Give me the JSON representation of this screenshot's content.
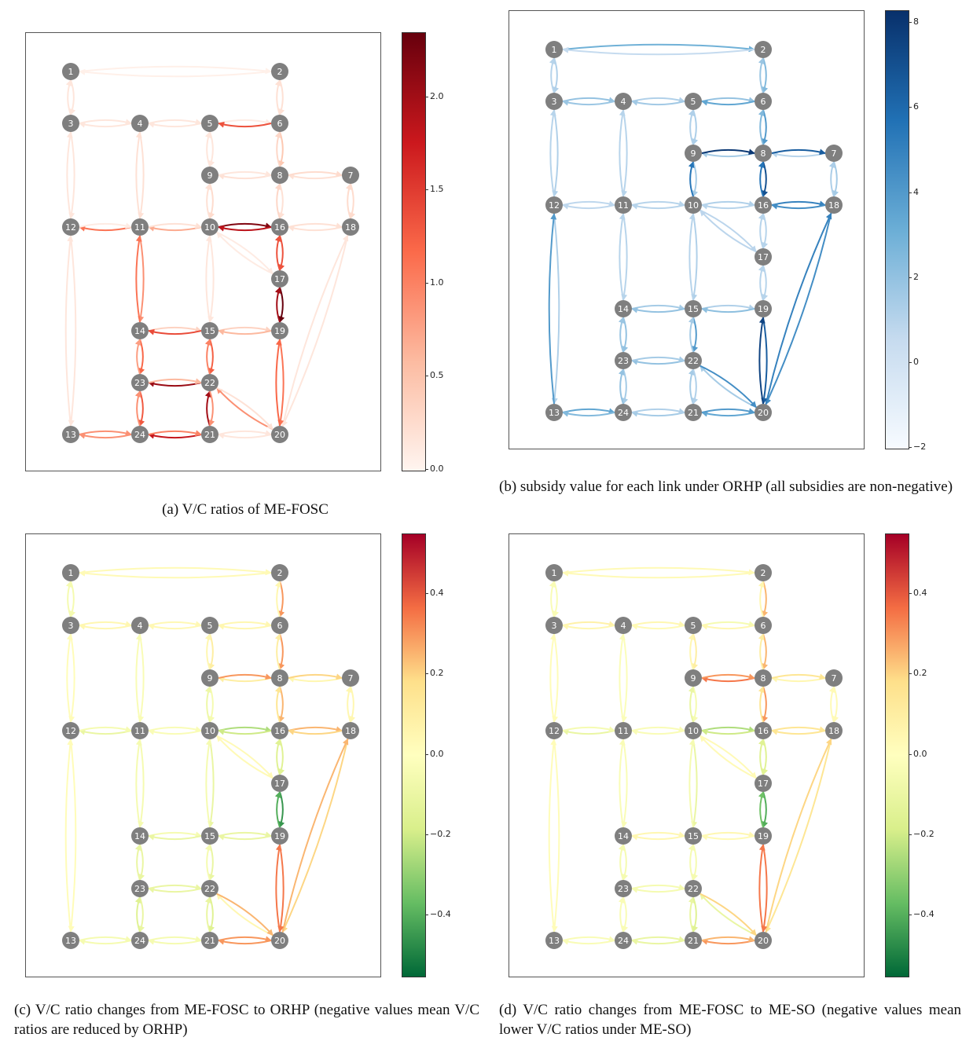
{
  "panels": [
    {
      "id": "a",
      "caption": "(a) V/C ratios of ME-FOSC",
      "colorbar": {
        "colors": [
          "#fff5f0",
          "#fcbba1",
          "#fb6a4a",
          "#cb181d",
          "#67000d"
        ],
        "ticks": [
          "0.0",
          "0.5",
          "1.0",
          "1.5",
          "2.0"
        ],
        "tick_values": [
          0.0,
          0.5,
          1.0,
          1.5,
          2.0
        ],
        "range": [
          0.0,
          2.35
        ]
      }
    },
    {
      "id": "b",
      "caption": "(b) subsidy value for each link under ORHP (all subsidies are non-negative)",
      "colorbar": {
        "colors": [
          "#f7fbff",
          "#c6dbef",
          "#6baed6",
          "#2171b5",
          "#08306b"
        ],
        "ticks": [
          "−2",
          "0",
          "2",
          "4",
          "6",
          "8"
        ],
        "tick_values": [
          -2,
          0,
          2,
          4,
          6,
          8
        ],
        "range": [
          -2.0,
          8.3
        ]
      }
    },
    {
      "id": "c",
      "caption": "(c) V/C ratio changes from ME-FOSC to ORHP (negative values mean V/C ratios are reduced by ORHP)",
      "colorbar": {
        "colors": [
          "#006837",
          "#66bd63",
          "#d9ef8b",
          "#ffffbf",
          "#fee08b",
          "#f46d43",
          "#a50026"
        ],
        "ticks": [
          "−0.4",
          "−0.2",
          "0.0",
          "0.2",
          "0.4"
        ],
        "tick_values": [
          -0.4,
          -0.2,
          0.0,
          0.2,
          0.4
        ],
        "range": [
          -0.55,
          0.55
        ]
      }
    },
    {
      "id": "d",
      "caption": "(d) V/C ratio changes from ME-FOSC to ME-SO (negative values mean lower V/C ratios under ME-SO)",
      "colorbar": {
        "colors": [
          "#006837",
          "#66bd63",
          "#d9ef8b",
          "#ffffbf",
          "#fee08b",
          "#f46d43",
          "#a50026"
        ],
        "ticks": [
          "−0.4",
          "−0.2",
          "0.0",
          "0.2",
          "0.4"
        ],
        "tick_values": [
          -0.4,
          -0.2,
          0.0,
          0.2,
          0.4
        ],
        "range": [
          -0.55,
          0.55
        ]
      }
    }
  ],
  "network": {
    "nodes": [
      {
        "id": "1",
        "col": 0,
        "row": 0
      },
      {
        "id": "2",
        "col": 3,
        "row": 0
      },
      {
        "id": "3",
        "col": 0,
        "row": 1
      },
      {
        "id": "4",
        "col": 1,
        "row": 1
      },
      {
        "id": "5",
        "col": 2,
        "row": 1
      },
      {
        "id": "6",
        "col": 3,
        "row": 1
      },
      {
        "id": "7",
        "col": 4,
        "row": 2
      },
      {
        "id": "8",
        "col": 3,
        "row": 2
      },
      {
        "id": "9",
        "col": 2,
        "row": 2
      },
      {
        "id": "10",
        "col": 2,
        "row": 3
      },
      {
        "id": "11",
        "col": 1,
        "row": 3
      },
      {
        "id": "12",
        "col": 0,
        "row": 3
      },
      {
        "id": "13",
        "col": 0,
        "row": 7
      },
      {
        "id": "14",
        "col": 1,
        "row": 5
      },
      {
        "id": "15",
        "col": 2,
        "row": 5
      },
      {
        "id": "16",
        "col": 3,
        "row": 3
      },
      {
        "id": "17",
        "col": 3,
        "row": 4
      },
      {
        "id": "18",
        "col": 4,
        "row": 3
      },
      {
        "id": "19",
        "col": 3,
        "row": 5
      },
      {
        "id": "20",
        "col": 3,
        "row": 7
      },
      {
        "id": "21",
        "col": 2,
        "row": 7
      },
      {
        "id": "22",
        "col": 2,
        "row": 6
      },
      {
        "id": "23",
        "col": 1,
        "row": 6
      },
      {
        "id": "24",
        "col": 1,
        "row": 7
      }
    ],
    "links": [
      [
        "1",
        "2"
      ],
      [
        "1",
        "3"
      ],
      [
        "2",
        "6"
      ],
      [
        "3",
        "4"
      ],
      [
        "3",
        "12"
      ],
      [
        "4",
        "5"
      ],
      [
        "4",
        "11"
      ],
      [
        "5",
        "6"
      ],
      [
        "5",
        "9"
      ],
      [
        "6",
        "8"
      ],
      [
        "7",
        "8"
      ],
      [
        "7",
        "18"
      ],
      [
        "8",
        "9"
      ],
      [
        "8",
        "16"
      ],
      [
        "9",
        "10"
      ],
      [
        "10",
        "11"
      ],
      [
        "10",
        "15"
      ],
      [
        "10",
        "16"
      ],
      [
        "10",
        "17"
      ],
      [
        "11",
        "12"
      ],
      [
        "11",
        "14"
      ],
      [
        "12",
        "13"
      ],
      [
        "13",
        "24"
      ],
      [
        "14",
        "15"
      ],
      [
        "14",
        "23"
      ],
      [
        "15",
        "19"
      ],
      [
        "15",
        "22"
      ],
      [
        "16",
        "17"
      ],
      [
        "16",
        "18"
      ],
      [
        "17",
        "19"
      ],
      [
        "18",
        "20"
      ],
      [
        "19",
        "20"
      ],
      [
        "20",
        "21"
      ],
      [
        "20",
        "22"
      ],
      [
        "21",
        "22"
      ],
      [
        "21",
        "24"
      ],
      [
        "22",
        "23"
      ],
      [
        "23",
        "24"
      ]
    ]
  },
  "link_values": {
    "a": {
      "1-2": 0.05,
      "2-1": 0.05,
      "1-3": 0.15,
      "3-1": 0.15,
      "2-6": 0.2,
      "6-2": 0.2,
      "3-4": 0.15,
      "4-3": 0.15,
      "3-12": 0.15,
      "12-3": 0.15,
      "4-5": 0.15,
      "5-4": 0.15,
      "4-11": 0.2,
      "11-4": 0.2,
      "5-6": 0.1,
      "6-5": 1.35,
      "5-9": 0.15,
      "9-5": 0.15,
      "6-8": 0.45,
      "8-6": 0.3,
      "7-8": 0.2,
      "8-7": 0.25,
      "7-18": 0.25,
      "18-7": 0.25,
      "8-9": 0.2,
      "9-8": 0.15,
      "8-16": 0.2,
      "16-8": 0.3,
      "9-10": 0.25,
      "10-9": 0.2,
      "10-11": 0.7,
      "11-10": 0.2,
      "10-15": 0.15,
      "15-10": 0.15,
      "10-16": 2.2,
      "16-10": 1.85,
      "10-17": 0.1,
      "17-10": 0.1,
      "11-12": 1.1,
      "12-11": 0.1,
      "11-14": 0.9,
      "14-11": 1.1,
      "12-13": 0.15,
      "13-12": 0.15,
      "13-24": 0.9,
      "24-13": 0.9,
      "14-15": 0.35,
      "15-14": 1.4,
      "14-23": 1.2,
      "23-14": 0.8,
      "15-19": 0.35,
      "19-15": 0.6,
      "15-22": 1.25,
      "22-15": 1.0,
      "16-17": 1.35,
      "17-16": 1.35,
      "16-18": 0.2,
      "18-16": 0.2,
      "17-19": 2.35,
      "19-17": 2.0,
      "18-20": 0.15,
      "20-18": 0.15,
      "19-20": 1.1,
      "20-19": 1.2,
      "20-21": 0.15,
      "21-20": 0.15,
      "20-22": 0.9,
      "22-20": 0.2,
      "21-22": 2.0,
      "22-21": 0.9,
      "21-24": 1.8,
      "24-21": 1.0,
      "22-23": 2.05,
      "23-22": 0.6,
      "23-24": 1.3,
      "24-23": 0.9
    },
    "b": {
      "1-2": 3.0,
      "2-1": 0.6,
      "1-3": 1.2,
      "3-1": 1.0,
      "2-6": 2.5,
      "6-2": 1.8,
      "3-4": 2.0,
      "4-3": 1.8,
      "3-12": 1.2,
      "12-3": 1.0,
      "4-5": 1.2,
      "5-4": 1.6,
      "4-11": 1.0,
      "11-4": 1.0,
      "5-6": 2.0,
      "6-5": 3.5,
      "5-9": 1.3,
      "9-5": 1.2,
      "6-8": 4.0,
      "8-6": 2.5,
      "7-8": 1.0,
      "8-7": 6.5,
      "7-18": 1.5,
      "18-7": 1.3,
      "8-9": 1.5,
      "9-8": 8.0,
      "8-16": 7.0,
      "16-8": 5.5,
      "9-10": 1.5,
      "10-9": 5.5,
      "10-11": 1.0,
      "11-10": 1.0,
      "10-15": 1.2,
      "15-10": 1.0,
      "10-16": 1.2,
      "16-10": 1.0,
      "10-17": 0.9,
      "17-10": 0.9,
      "11-12": 0.8,
      "12-11": 0.8,
      "11-14": 1.0,
      "14-11": 1.0,
      "12-13": 1.2,
      "13-12": 4.0,
      "13-24": 3.5,
      "24-13": 2.5,
      "14-15": 1.5,
      "15-14": 2.0,
      "14-23": 2.0,
      "23-14": 1.8,
      "15-19": 1.2,
      "19-15": 2.2,
      "15-22": 4.0,
      "22-15": 1.5,
      "16-17": 1.0,
      "16-18": 5.0,
      "18-16": 4.5,
      "17-16": 1.0,
      "17-19": 1.0,
      "19-17": 1.0,
      "18-20": 4.5,
      "20-18": 5.0,
      "19-20": 6.5,
      "20-19": 7.5,
      "20-21": 3.5,
      "21-20": 4.0,
      "20-22": 1.5,
      "22-20": 4.5,
      "21-22": 1.5,
      "22-21": 1.2,
      "21-24": 1.5,
      "24-21": 1.2,
      "22-23": 2.0,
      "23-22": 1.5,
      "23-24": 1.5,
      "24-23": 2.0
    },
    "c": {
      "1-2": 0.03,
      "2-1": 0.03,
      "1-3": -0.05,
      "3-1": -0.05,
      "2-6": 0.3,
      "6-2": 0.05,
      "3-4": 0.05,
      "4-3": 0.05,
      "3-12": 0.02,
      "12-3": 0.02,
      "4-5": 0.04,
      "5-4": 0.04,
      "4-11": -0.03,
      "11-4": -0.03,
      "5-6": 0.05,
      "6-5": 0.05,
      "5-9": 0.1,
      "9-5": 0.05,
      "6-8": 0.3,
      "8-6": 0.1,
      "7-8": 0.05,
      "8-7": 0.2,
      "7-18": 0.05,
      "18-7": 0.05,
      "8-9": 0.1,
      "9-8": 0.3,
      "8-16": 0.25,
      "16-8": 0.15,
      "9-10": -0.05,
      "10-9": -0.08,
      "10-11": -0.03,
      "11-10": -0.03,
      "10-15": -0.1,
      "15-10": -0.05,
      "10-16": -0.25,
      "16-10": -0.2,
      "10-17": 0.03,
      "17-10": 0.03,
      "11-12": -0.1,
      "12-11": -0.05,
      "11-14": -0.05,
      "14-11": -0.05,
      "12-13": 0.02,
      "13-12": 0.02,
      "13-24": -0.05,
      "24-13": -0.05,
      "14-15": -0.05,
      "15-14": -0.1,
      "14-23": -0.1,
      "23-14": -0.1,
      "15-19": -0.1,
      "19-15": -0.1,
      "15-22": -0.1,
      "22-15": -0.05,
      "16-17": -0.15,
      "17-16": -0.15,
      "16-18": 0.25,
      "18-16": 0.2,
      "17-19": -0.45,
      "19-17": -0.4,
      "18-20": 0.2,
      "20-18": 0.25,
      "19-20": 0.35,
      "20-19": 0.35,
      "20-21": 0.3,
      "21-20": 0.3,
      "20-22": 0.05,
      "22-20": 0.25,
      "21-22": -0.1,
      "22-21": -0.15,
      "21-24": -0.05,
      "24-21": -0.05,
      "22-23": -0.1,
      "23-22": -0.1,
      "23-24": -0.1,
      "24-23": -0.15
    },
    "d": {
      "1-2": 0.03,
      "2-1": 0.03,
      "1-3": -0.03,
      "3-1": -0.03,
      "2-6": 0.25,
      "6-2": 0.05,
      "3-4": 0.08,
      "4-3": 0.05,
      "3-12": 0.02,
      "12-3": 0.02,
      "4-5": 0.05,
      "5-4": 0.03,
      "4-11": -0.02,
      "11-4": -0.02,
      "5-6": -0.05,
      "6-5": 0.05,
      "5-9": 0.1,
      "9-5": 0.05,
      "6-8": 0.25,
      "8-6": 0.1,
      "7-8": 0.05,
      "8-7": 0.15,
      "7-18": 0.03,
      "18-7": 0.03,
      "8-9": 0.35,
      "9-8": 0.3,
      "8-16": 0.3,
      "16-8": 0.15,
      "9-10": -0.05,
      "10-9": -0.1,
      "10-11": -0.03,
      "11-10": -0.03,
      "10-15": -0.1,
      "15-10": -0.05,
      "10-16": -0.25,
      "16-10": -0.2,
      "10-17": 0.03,
      "17-10": 0.03,
      "11-12": -0.1,
      "12-11": -0.05,
      "11-14": -0.03,
      "14-11": -0.03,
      "12-13": 0.02,
      "13-12": 0.02,
      "13-24": -0.03,
      "24-13": -0.03,
      "14-15": 0.05,
      "15-14": 0.05,
      "14-23": -0.05,
      "23-14": -0.05,
      "15-19": 0.05,
      "19-15": 0.03,
      "15-22": -0.05,
      "22-15": -0.05,
      "16-17": -0.15,
      "17-16": -0.15,
      "16-18": 0.15,
      "18-16": 0.15,
      "17-19": -0.4,
      "19-17": -0.35,
      "18-20": 0.15,
      "20-18": 0.2,
      "19-20": 0.35,
      "20-19": 0.35,
      "20-21": 0.3,
      "21-20": 0.25,
      "20-22": -0.1,
      "22-20": 0.2,
      "21-22": -0.1,
      "22-21": -0.15,
      "21-24": -0.1,
      "24-21": -0.1,
      "22-23": -0.05,
      "23-22": -0.05,
      "23-24": -0.03,
      "24-23": -0.03
    }
  }
}
